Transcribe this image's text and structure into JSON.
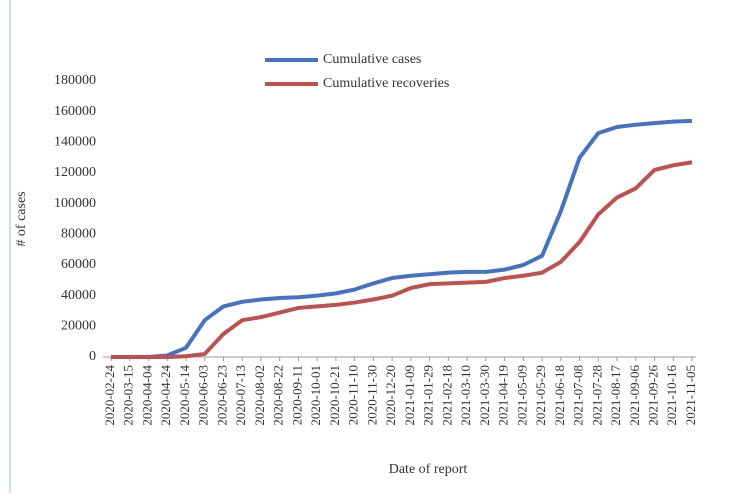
{
  "chart_data": {
    "type": "line",
    "x_label": "Date of report",
    "y_label": "# of cases",
    "categories": [
      "2020-02-24",
      "2020-03-15",
      "2020-04-04",
      "2020-04-24",
      "2020-05-14",
      "2020-06-03",
      "2020-06-23",
      "2020-07-13",
      "2020-08-02",
      "2020-08-22",
      "2020-09-11",
      "2020-10-01",
      "2020-10-21",
      "2020-11-10",
      "2020-11-30",
      "2020-12-20",
      "2021-01-09",
      "2021-01-29",
      "2021-02-18",
      "2021-03-10",
      "2021-03-30",
      "2021-04-19",
      "2021-05-09",
      "2021-05-29",
      "2021-06-18",
      "2021-07-08",
      "2021-07-28",
      "2021-08-17",
      "2021-09-06",
      "2021-09-26",
      "2021-10-16",
      "2021-11-05"
    ],
    "series": [
      {
        "name": "Cumulative cases",
        "color": "#4472c4",
        "values": [
          0,
          0,
          0,
          1000,
          6000,
          24000,
          33000,
          36000,
          37500,
          38500,
          39000,
          40000,
          41500,
          44000,
          48000,
          51500,
          53000,
          54000,
          55000,
          55500,
          55500,
          57000,
          60000,
          66000,
          95000,
          130000,
          146000,
          150000,
          151500,
          152500,
          153500,
          154000
        ]
      },
      {
        "name": "Cumulative recoveries",
        "color": "#c0504d",
        "values": [
          0,
          0,
          0,
          0,
          500,
          2000,
          15000,
          24000,
          26000,
          29000,
          32000,
          33000,
          34000,
          35500,
          37500,
          40000,
          45000,
          47500,
          48000,
          48500,
          49000,
          51500,
          53000,
          55000,
          62000,
          75000,
          93000,
          104000,
          110000,
          122000,
          125000,
          127000
        ]
      }
    ],
    "ylim": [
      0,
      180000
    ],
    "yticks": [
      0,
      20000,
      40000,
      60000,
      80000,
      100000,
      120000,
      140000,
      160000,
      180000
    ],
    "grid": false,
    "legend": "top"
  }
}
